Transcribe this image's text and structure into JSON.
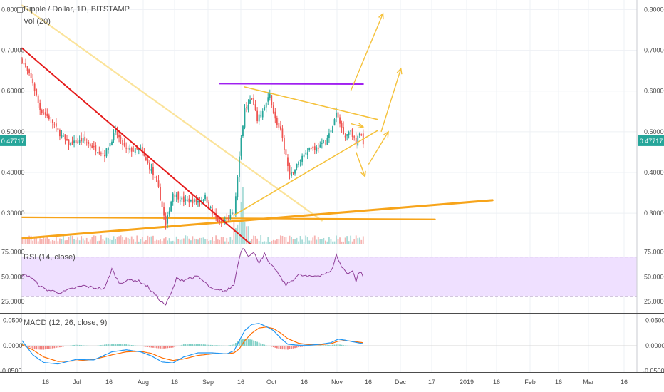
{
  "header": {
    "symbol_title": "Ripple / Dollar, 1D, BITSTAMP",
    "volume_label": "Vol (20)",
    "rsi_label": "RSI (14, close)",
    "macd_label": "MACD (12, 26, close, 9)"
  },
  "colors": {
    "up": "#26a69a",
    "down": "#ef5350",
    "rsi_line": "#8e3c97",
    "rsi_band": "#efe0ff",
    "macd_line": "#2196f3",
    "signal_line": "#ff6d00",
    "red_trend": "#e51c1c",
    "light_trend": "#fbe39a",
    "orange_trend": "#f7a41a",
    "purple_line": "#a020f0",
    "price_badge": "#26a69a"
  },
  "chart_data": [
    {
      "type": "candlestick",
      "title": "Ripple / Dollar, 1D, BITSTAMP",
      "ylim": [
        0.225,
        0.82
      ],
      "y_ticks": [
        "0.80000",
        "0.70000",
        "0.60000",
        "0.50000",
        "0.40000",
        "0.30000"
      ],
      "x_ticks": [
        "16",
        "Jul",
        "16",
        "Aug",
        "16",
        "Sep",
        "16",
        "Oct",
        "16",
        "Nov",
        "16",
        "Dec",
        "17",
        "2019",
        "16",
        "Feb",
        "16",
        "Mar",
        "16"
      ],
      "last_price": "0.47717",
      "anchors": [
        [
          0,
          0.675
        ],
        [
          6,
          0.62
        ],
        [
          10,
          0.555
        ],
        [
          16,
          0.53
        ],
        [
          20,
          0.5
        ],
        [
          26,
          0.47
        ],
        [
          34,
          0.48
        ],
        [
          40,
          0.46
        ],
        [
          46,
          0.445
        ],
        [
          52,
          0.5
        ],
        [
          58,
          0.455
        ],
        [
          66,
          0.455
        ],
        [
          72,
          0.405
        ],
        [
          76,
          0.36
        ],
        [
          80,
          0.27
        ],
        [
          84,
          0.35
        ],
        [
          90,
          0.33
        ],
        [
          98,
          0.33
        ],
        [
          102,
          0.34
        ],
        [
          106,
          0.3
        ],
        [
          110,
          0.275
        ],
        [
          114,
          0.285
        ],
        [
          118,
          0.3
        ],
        [
          121,
          0.44
        ],
        [
          124,
          0.56
        ],
        [
          128,
          0.58
        ],
        [
          131,
          0.53
        ],
        [
          134,
          0.55
        ],
        [
          138,
          0.59
        ],
        [
          141,
          0.53
        ],
        [
          144,
          0.5
        ],
        [
          147,
          0.44
        ],
        [
          149,
          0.39
        ],
        [
          152,
          0.41
        ],
        [
          156,
          0.44
        ],
        [
          160,
          0.46
        ],
        [
          164,
          0.46
        ],
        [
          168,
          0.47
        ],
        [
          172,
          0.5
        ],
        [
          175,
          0.545
        ],
        [
          177,
          0.52
        ],
        [
          180,
          0.49
        ],
        [
          183,
          0.505
        ],
        [
          186,
          0.47
        ],
        [
          188,
          0.5
        ],
        [
          190,
          0.475
        ]
      ],
      "volume_label": "Vol (20)"
    },
    {
      "type": "line",
      "title": "RSI (14, close)",
      "ylim": [
        15,
        82
      ],
      "y_ticks": [
        "75.0000",
        "50.0000",
        "25.0000"
      ],
      "band": [
        30,
        70
      ],
      "anchors": [
        [
          0,
          52
        ],
        [
          4,
          51
        ],
        [
          8,
          44
        ],
        [
          12,
          38
        ],
        [
          16,
          36
        ],
        [
          22,
          34
        ],
        [
          28,
          38
        ],
        [
          34,
          41
        ],
        [
          40,
          39
        ],
        [
          46,
          38
        ],
        [
          50,
          58
        ],
        [
          54,
          44
        ],
        [
          58,
          46
        ],
        [
          62,
          47
        ],
        [
          66,
          45
        ],
        [
          70,
          40
        ],
        [
          74,
          32
        ],
        [
          78,
          24
        ],
        [
          80,
          22
        ],
        [
          83,
          33
        ],
        [
          86,
          48
        ],
        [
          90,
          47
        ],
        [
          94,
          49
        ],
        [
          98,
          50
        ],
        [
          102,
          44
        ],
        [
          106,
          37
        ],
        [
          110,
          36
        ],
        [
          114,
          36
        ],
        [
          118,
          42
        ],
        [
          121,
          70
        ],
        [
          123,
          80
        ],
        [
          126,
          72
        ],
        [
          129,
          74
        ],
        [
          132,
          65
        ],
        [
          135,
          73
        ],
        [
          138,
          62
        ],
        [
          141,
          58
        ],
        [
          144,
          49
        ],
        [
          147,
          42
        ],
        [
          150,
          46
        ],
        [
          154,
          52
        ],
        [
          160,
          50
        ],
        [
          166,
          52
        ],
        [
          172,
          55
        ],
        [
          175,
          72
        ],
        [
          178,
          60
        ],
        [
          181,
          54
        ],
        [
          184,
          56
        ],
        [
          186,
          46
        ],
        [
          188,
          56
        ],
        [
          190,
          50
        ]
      ]
    },
    {
      "type": "line",
      "title": "MACD (12, 26, close, 9)",
      "ylim": [
        -0.052,
        0.062
      ],
      "y_ticks": [
        "0.0500",
        "0.0000",
        "-0.0500"
      ],
      "macd_anchors": [
        [
          0,
          0.01
        ],
        [
          6,
          -0.018
        ],
        [
          12,
          -0.033
        ],
        [
          20,
          -0.036
        ],
        [
          30,
          -0.027
        ],
        [
          40,
          -0.028
        ],
        [
          50,
          -0.012
        ],
        [
          58,
          -0.008
        ],
        [
          66,
          -0.012
        ],
        [
          72,
          -0.02
        ],
        [
          78,
          -0.032
        ],
        [
          84,
          -0.034
        ],
        [
          90,
          -0.022
        ],
        [
          98,
          -0.014
        ],
        [
          106,
          -0.014
        ],
        [
          114,
          -0.016
        ],
        [
          118,
          -0.01
        ],
        [
          121,
          0.01
        ],
        [
          124,
          0.03
        ],
        [
          128,
          0.042
        ],
        [
          132,
          0.044
        ],
        [
          136,
          0.038
        ],
        [
          140,
          0.03
        ],
        [
          144,
          0.015
        ],
        [
          148,
          0.003
        ],
        [
          154,
          0.001
        ],
        [
          160,
          0.001
        ],
        [
          166,
          0.003
        ],
        [
          172,
          0.006
        ],
        [
          176,
          0.013
        ],
        [
          180,
          0.011
        ],
        [
          184,
          0.008
        ],
        [
          190,
          0.004
        ]
      ],
      "signal_anchors": [
        [
          0,
          0.002
        ],
        [
          6,
          -0.008
        ],
        [
          12,
          -0.022
        ],
        [
          20,
          -0.031
        ],
        [
          30,
          -0.03
        ],
        [
          40,
          -0.027
        ],
        [
          50,
          -0.018
        ],
        [
          58,
          -0.012
        ],
        [
          66,
          -0.011
        ],
        [
          72,
          -0.015
        ],
        [
          78,
          -0.024
        ],
        [
          84,
          -0.029
        ],
        [
          90,
          -0.026
        ],
        [
          98,
          -0.019
        ],
        [
          106,
          -0.016
        ],
        [
          114,
          -0.016
        ],
        [
          118,
          -0.014
        ],
        [
          121,
          -0.006
        ],
        [
          124,
          0.01
        ],
        [
          128,
          0.025
        ],
        [
          132,
          0.035
        ],
        [
          136,
          0.037
        ],
        [
          140,
          0.034
        ],
        [
          144,
          0.025
        ],
        [
          148,
          0.014
        ],
        [
          154,
          0.005
        ],
        [
          160,
          0.002
        ],
        [
          166,
          0.002
        ],
        [
          172,
          0.004
        ],
        [
          176,
          0.009
        ],
        [
          180,
          0.01
        ],
        [
          184,
          0.009
        ],
        [
          190,
          0.006
        ]
      ]
    }
  ],
  "drawings": {
    "red_trendline": [
      [
        0,
        0.705
      ],
      [
        127,
        0.225
      ]
    ],
    "light_trendline": [
      [
        0,
        0.81
      ],
      [
        167,
        0.282
      ]
    ],
    "orange_support_flat": [
      [
        0,
        0.29
      ],
      [
        230,
        0.285
      ]
    ],
    "orange_rising_line": [
      [
        0,
        0.238
      ],
      [
        262,
        0.332
      ]
    ],
    "purple_resistance": [
      [
        110,
        0.618
      ],
      [
        190,
        0.617
      ]
    ],
    "triangle_upper": [
      [
        124,
        0.61
      ],
      [
        198,
        0.53
      ]
    ],
    "triangle_lower": [
      [
        118,
        0.295
      ],
      [
        198,
        0.503
      ]
    ],
    "projection_arrows": [
      [
        [
          183,
          0.6
        ],
        [
          201,
          0.79
        ]
      ],
      [
        [
          200,
          0.5
        ],
        [
          211,
          0.655
        ]
      ],
      [
        [
          183,
          0.52
        ],
        [
          190,
          0.512
        ]
      ],
      [
        [
          193,
          0.42
        ],
        [
          204,
          0.5
        ]
      ],
      [
        [
          186,
          0.45
        ],
        [
          191,
          0.39
        ]
      ]
    ]
  }
}
